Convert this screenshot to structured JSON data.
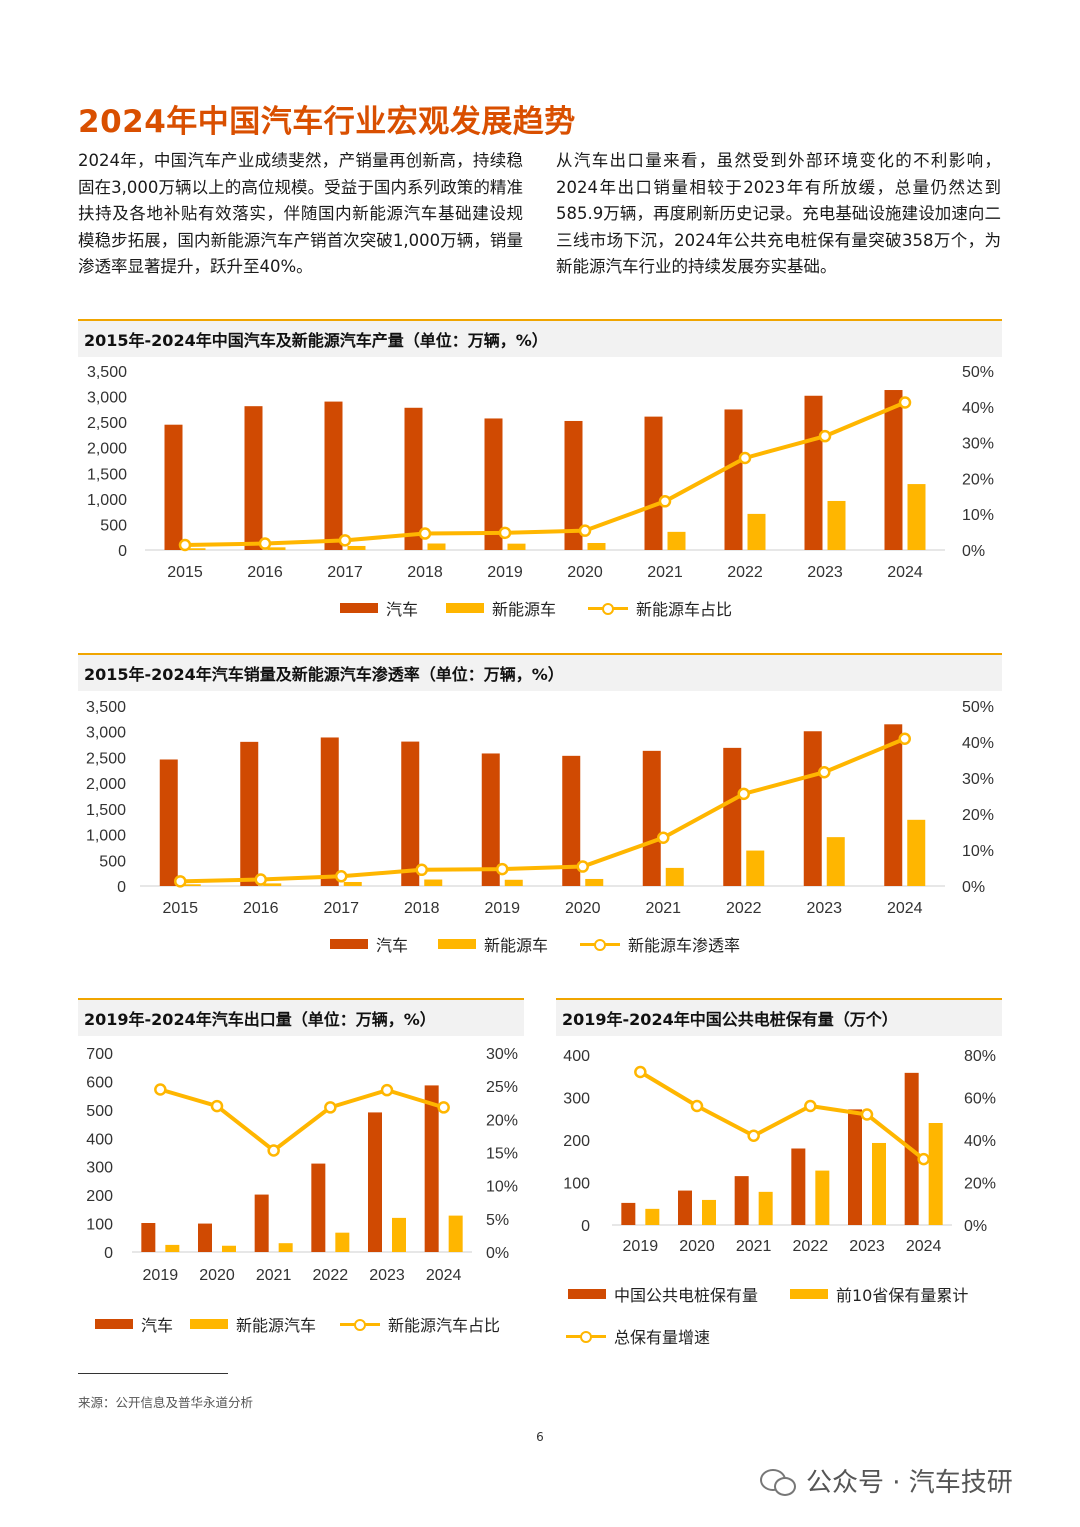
{
  "page": {
    "title": "2024年中国汽车行业宏观发展趋势",
    "intro_left": "2024年，中国汽车产业成绩斐然，产销量再创新高，持续稳固在3,000万辆以上的高位规模。受益于国内系列政策的精准扶持及各地补贴有效落实，伴随国内新能源汽车基础建设规模稳步拓展，国内新能源汽车产销首次突破1,000万辆，销量渗透率显著提升，跃升至40%。",
    "intro_right": "从汽车出口量来看，虽然受到外部环境变化的不利影响，2024年出口销量相较于2023年有所放缓，总量仍然达到585.9万辆，再度刷新历史记录。充电基础设施建设加速向二三线市场下沉，2024年公共充电桩保有量突破358万个，为新能源汽车行业的持续发展夯实基础。",
    "source": "来源：公开信息及普华永道分析",
    "page_number": "6",
    "watermark": "公众号 · 汽车技研"
  },
  "colors": {
    "bar1": "#d04a02",
    "bar2": "#ffb600",
    "line": "#ffb600",
    "accent": "#d94f00",
    "rule": "#f0a500"
  },
  "chart_data": [
    {
      "id": "production",
      "type": "bar",
      "title": "2015年-2024年中国汽车及新能源汽车产量（单位：万辆，%）",
      "categories": [
        "2015",
        "2016",
        "2017",
        "2018",
        "2019",
        "2020",
        "2021",
        "2022",
        "2023",
        "2024"
      ],
      "yticks_left": [
        "3,500",
        "3,000",
        "2,500",
        "2,000",
        "1,500",
        "1,000",
        "500",
        "0"
      ],
      "yticks_right": [
        "50%",
        "40%",
        "30%",
        "20%",
        "10%",
        "0%"
      ],
      "ylim_left": [
        0,
        3500
      ],
      "ylim_right": [
        0,
        50
      ],
      "series": [
        {
          "name": "汽车",
          "kind": "bar",
          "axis": "left",
          "values": [
            2450,
            2812,
            2902,
            2781,
            2572,
            2523,
            2608,
            2748,
            3016,
            3128
          ]
        },
        {
          "name": "新能源车",
          "kind": "bar",
          "axis": "left",
          "values": [
            34,
            52,
            79,
            127,
            124,
            137,
            355,
            706,
            959,
            1289
          ]
        },
        {
          "name": "新能源车占比",
          "kind": "line",
          "axis": "right",
          "values": [
            1.4,
            1.8,
            2.7,
            4.6,
            4.8,
            5.4,
            13.6,
            25.7,
            31.8,
            41.2
          ]
        }
      ]
    },
    {
      "id": "sales",
      "type": "bar",
      "title": "2015年-2024年汽车销量及新能源汽车渗透率（单位：万辆，%）",
      "categories": [
        "2015",
        "2016",
        "2017",
        "2018",
        "2019",
        "2020",
        "2021",
        "2022",
        "2023",
        "2024"
      ],
      "yticks_left": [
        "3,500",
        "3,000",
        "2,500",
        "2,000",
        "1,500",
        "1,000",
        "500",
        "0"
      ],
      "yticks_right": [
        "50%",
        "40%",
        "30%",
        "20%",
        "10%",
        "0%"
      ],
      "ylim_left": [
        0,
        3500
      ],
      "ylim_right": [
        0,
        50
      ],
      "series": [
        {
          "name": "汽车",
          "kind": "bar",
          "axis": "left",
          "values": [
            2460,
            2803,
            2888,
            2808,
            2577,
            2531,
            2628,
            2686,
            3009,
            3144
          ]
        },
        {
          "name": "新能源车",
          "kind": "bar",
          "axis": "left",
          "values": [
            33,
            51,
            78,
            126,
            121,
            137,
            352,
            689,
            950,
            1287
          ]
        },
        {
          "name": "新能源车渗透率",
          "kind": "line",
          "axis": "right",
          "values": [
            1.3,
            1.8,
            2.7,
            4.5,
            4.7,
            5.4,
            13.4,
            25.6,
            31.6,
            40.9
          ]
        }
      ]
    },
    {
      "id": "exports",
      "type": "bar",
      "title": "2019年-2024年汽车出口量（单位：万辆，%）",
      "categories": [
        "2019",
        "2020",
        "2021",
        "2022",
        "2023",
        "2024"
      ],
      "yticks_left": [
        "700",
        "600",
        "500",
        "400",
        "300",
        "200",
        "100",
        "0"
      ],
      "yticks_right": [
        "30%",
        "25%",
        "20%",
        "15%",
        "10%",
        "5%",
        "0%"
      ],
      "ylim_left": [
        0,
        700
      ],
      "ylim_right": [
        0,
        30
      ],
      "series": [
        {
          "name": "汽车",
          "kind": "bar",
          "axis": "left",
          "values": [
            102,
            100,
            202,
            311,
            491,
            586
          ]
        },
        {
          "name": "新能源汽车",
          "kind": "bar",
          "axis": "left",
          "values": [
            25,
            22,
            31,
            68,
            120,
            128
          ]
        },
        {
          "name": "新能源汽车占比",
          "kind": "line",
          "axis": "right",
          "values": [
            24.5,
            22.0,
            15.3,
            21.8,
            24.4,
            21.8
          ]
        }
      ]
    },
    {
      "id": "chargers",
      "type": "bar",
      "title": "2019年-2024年中国公共电桩保有量（万个）",
      "categories": [
        "2019",
        "2020",
        "2021",
        "2022",
        "2023",
        "2024"
      ],
      "yticks_left": [
        "400",
        "300",
        "200",
        "100",
        "0"
      ],
      "yticks_right": [
        "80%",
        "60%",
        "40%",
        "20%",
        "0%"
      ],
      "ylim_left": [
        0,
        400
      ],
      "ylim_right": [
        0,
        80
      ],
      "series": [
        {
          "name": "中国公共电桩保有量",
          "kind": "bar",
          "axis": "left",
          "values": [
            52,
            81,
            115,
            180,
            272,
            358
          ]
        },
        {
          "name": "前10省保有量累计",
          "kind": "bar",
          "axis": "left",
          "values": [
            38,
            59,
            78,
            128,
            193,
            240
          ]
        },
        {
          "name": "总保有量增速",
          "kind": "line",
          "axis": "right",
          "values": [
            72,
            56,
            42,
            56,
            52,
            31
          ]
        }
      ]
    }
  ]
}
